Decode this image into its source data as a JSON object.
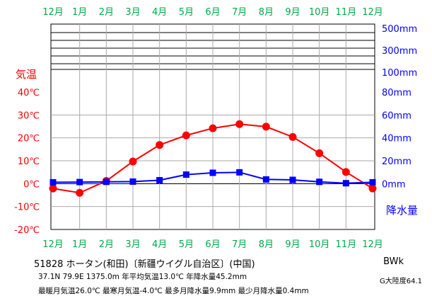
{
  "chart_data": {
    "type": "line",
    "categories": [
      "12月",
      "1月",
      "2月",
      "3月",
      "4月",
      "5月",
      "6月",
      "7月",
      "8月",
      "9月",
      "10月",
      "11月",
      "12月"
    ],
    "series": [
      {
        "name": "気温",
        "color": "#ff0000",
        "marker": "circle",
        "values": [
          -2.1,
          -4.0,
          1.2,
          9.7,
          16.9,
          21.1,
          24.2,
          26.0,
          24.9,
          20.4,
          13.3,
          5.1,
          -2.1
        ]
      },
      {
        "name": "降水量",
        "color": "#0000ff",
        "marker": "square",
        "values": [
          1.2,
          1.4,
          1.6,
          1.8,
          3.0,
          7.9,
          9.5,
          9.9,
          3.7,
          3.3,
          1.6,
          0.4,
          1.2
        ]
      }
    ],
    "temp_axis": {
      "label": "気温",
      "color": "#ff0000",
      "min": -20,
      "max": 40,
      "ticks": [
        "-20℃",
        "-10℃",
        "0℃",
        "10℃",
        "20℃",
        "30℃",
        "40℃"
      ]
    },
    "precip_axis": {
      "label": "降水量",
      "color": "#0000ff",
      "ticks_low": [
        "0mm",
        "20mm",
        "40mm",
        "60mm",
        "80mm"
      ],
      "ticks_high": [
        "100mm",
        "300mm",
        "500mm"
      ]
    },
    "month_label_color": "#00aa44",
    "grid": true
  },
  "station": {
    "title": "51828  ホータン(和田)〔新疆ウイグル自治区〕(中国)",
    "line1": "37.1N  79.9E  1375.0m  年平均気温13.0℃  年降水量45.2mm",
    "line2": "最暖月気温26.0℃  最寒月気温-4.0℃  最多月降水量9.9mm  最少月降水量0.4mm",
    "climate_code": "BWk",
    "aridity": "G大陸度64.1"
  }
}
